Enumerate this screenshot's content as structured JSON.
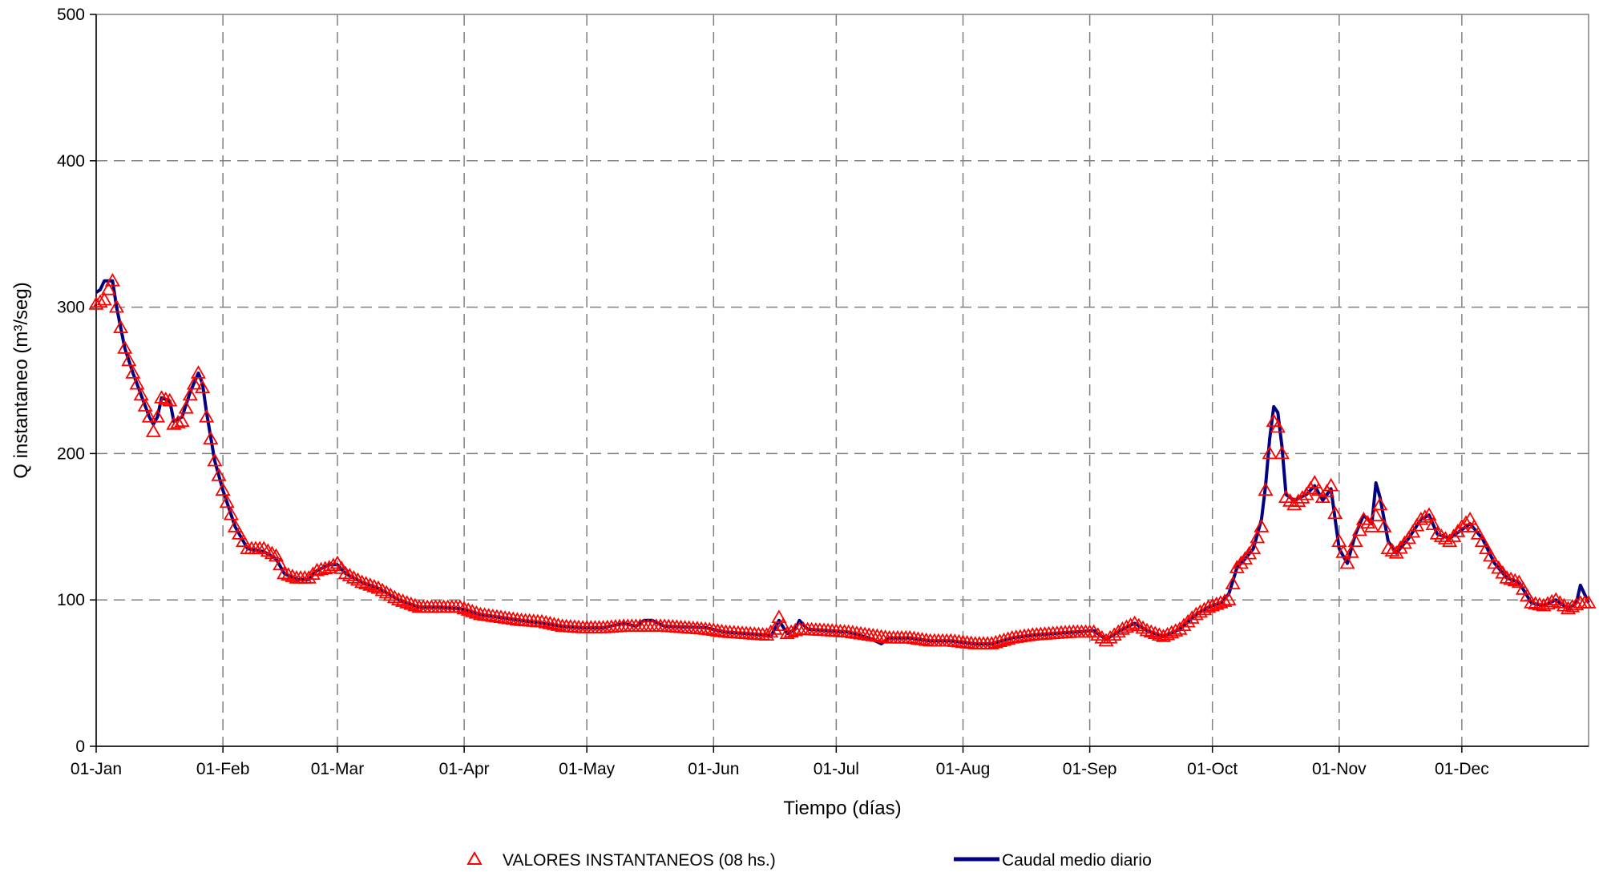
{
  "chart_data": {
    "type": "line",
    "xlabel": "Tiempo (días)",
    "ylabel": "Q instantaneo (m³/seg)",
    "ylim": [
      0,
      500
    ],
    "yticks": [
      0,
      100,
      200,
      300,
      400,
      500
    ],
    "xlim": [
      1,
      366
    ],
    "xticks": [
      {
        "label": "01-Jan",
        "day": 1
      },
      {
        "label": "01-Feb",
        "day": 32
      },
      {
        "label": "01-Mar",
        "day": 60
      },
      {
        "label": "01-Apr",
        "day": 91
      },
      {
        "label": "01-May",
        "day": 121
      },
      {
        "label": "01-Jun",
        "day": 152
      },
      {
        "label": "01-Jul",
        "day": 182
      },
      {
        "label": "01-Aug",
        "day": 213
      },
      {
        "label": "01-Sep",
        "day": 244
      },
      {
        "label": "01-Oct",
        "day": 274
      },
      {
        "label": "01-Nov",
        "day": 305
      },
      {
        "label": "01-Dec",
        "day": 335
      }
    ],
    "grid": true,
    "legend_position": "bottom",
    "colors": {
      "triangles": "#ff0000",
      "line": "#000080",
      "grid": "#808080"
    },
    "series": [
      {
        "name": "VALORES INSTANTANEOS (08 hs.)",
        "marker": "triangle",
        "anchors": [
          [
            1,
            302
          ],
          [
            3,
            305
          ],
          [
            4,
            312
          ],
          [
            5,
            318
          ],
          [
            6,
            300
          ],
          [
            7,
            286
          ],
          [
            8,
            272
          ],
          [
            10,
            255
          ],
          [
            12,
            240
          ],
          [
            14,
            225
          ],
          [
            15,
            215
          ],
          [
            16,
            225
          ],
          [
            17,
            238
          ],
          [
            19,
            236
          ],
          [
            20,
            220
          ],
          [
            22,
            222
          ],
          [
            24,
            240
          ],
          [
            26,
            255
          ],
          [
            27,
            245
          ],
          [
            28,
            225
          ],
          [
            30,
            195
          ],
          [
            32,
            175
          ],
          [
            35,
            150
          ],
          [
            38,
            135
          ],
          [
            42,
            135
          ],
          [
            45,
            130
          ],
          [
            47,
            118
          ],
          [
            50,
            115
          ],
          [
            53,
            115
          ],
          [
            55,
            120
          ],
          [
            58,
            122
          ],
          [
            60,
            125
          ],
          [
            62,
            118
          ],
          [
            66,
            112
          ],
          [
            70,
            108
          ],
          [
            75,
            100
          ],
          [
            80,
            95
          ],
          [
            85,
            95
          ],
          [
            90,
            95
          ],
          [
            95,
            90
          ],
          [
            100,
            88
          ],
          [
            105,
            86
          ],
          [
            110,
            85
          ],
          [
            115,
            82
          ],
          [
            120,
            81
          ],
          [
            125,
            81
          ],
          [
            130,
            82
          ],
          [
            140,
            82
          ],
          [
            150,
            80
          ],
          [
            155,
            78
          ],
          [
            160,
            77
          ],
          [
            165,
            76
          ],
          [
            167,
            80
          ],
          [
            168,
            88
          ],
          [
            170,
            77
          ],
          [
            173,
            80
          ],
          [
            180,
            79
          ],
          [
            185,
            78
          ],
          [
            190,
            76
          ],
          [
            195,
            74
          ],
          [
            200,
            74
          ],
          [
            205,
            72
          ],
          [
            210,
            72
          ],
          [
            213,
            71
          ],
          [
            216,
            70
          ],
          [
            220,
            70
          ],
          [
            225,
            74
          ],
          [
            230,
            76
          ],
          [
            235,
            77
          ],
          [
            240,
            78
          ],
          [
            245,
            78
          ],
          [
            248,
            72
          ],
          [
            252,
            80
          ],
          [
            255,
            84
          ],
          [
            258,
            79
          ],
          [
            262,
            75
          ],
          [
            266,
            80
          ],
          [
            270,
            90
          ],
          [
            273,
            95
          ],
          [
            276,
            98
          ],
          [
            278,
            100
          ],
          [
            280,
            122
          ],
          [
            282,
            128
          ],
          [
            284,
            135
          ],
          [
            286,
            150
          ],
          [
            288,
            200
          ],
          [
            289,
            222
          ],
          [
            290,
            218
          ],
          [
            291,
            200
          ],
          [
            292,
            170
          ],
          [
            294,
            165
          ],
          [
            297,
            172
          ],
          [
            299,
            180
          ],
          [
            301,
            170
          ],
          [
            303,
            178
          ],
          [
            305,
            140
          ],
          [
            307,
            125
          ],
          [
            309,
            140
          ],
          [
            311,
            155
          ],
          [
            313,
            150
          ],
          [
            315,
            165
          ],
          [
            317,
            135
          ],
          [
            319,
            132
          ],
          [
            322,
            142
          ],
          [
            325,
            155
          ],
          [
            327,
            158
          ],
          [
            329,
            145
          ],
          [
            332,
            140
          ],
          [
            335,
            150
          ],
          [
            337,
            155
          ],
          [
            340,
            140
          ],
          [
            343,
            125
          ],
          [
            346,
            115
          ],
          [
            349,
            112
          ],
          [
            352,
            98
          ],
          [
            355,
            96
          ],
          [
            358,
            100
          ],
          [
            361,
            94
          ],
          [
            364,
            98
          ],
          [
            366,
            98
          ]
        ]
      },
      {
        "name": "Caudal medio diario",
        "marker": "line",
        "points": [
          [
            1,
            310
          ],
          [
            2,
            312
          ],
          [
            3,
            318
          ],
          [
            5,
            318
          ],
          [
            6,
            300
          ],
          [
            7,
            286
          ],
          [
            8,
            272
          ],
          [
            10,
            255
          ],
          [
            12,
            240
          ],
          [
            14,
            225
          ],
          [
            15,
            220
          ],
          [
            16,
            225
          ],
          [
            17,
            238
          ],
          [
            19,
            236
          ],
          [
            20,
            222
          ],
          [
            22,
            225
          ],
          [
            24,
            242
          ],
          [
            26,
            255
          ],
          [
            27,
            248
          ],
          [
            28,
            228
          ],
          [
            30,
            195
          ],
          [
            32,
            175
          ],
          [
            35,
            150
          ],
          [
            38,
            135
          ],
          [
            42,
            133
          ],
          [
            45,
            128
          ],
          [
            47,
            118
          ],
          [
            50,
            114
          ],
          [
            53,
            114
          ],
          [
            55,
            120
          ],
          [
            58,
            124
          ],
          [
            60,
            124
          ],
          [
            62,
            118
          ],
          [
            66,
            112
          ],
          [
            70,
            108
          ],
          [
            75,
            100
          ],
          [
            80,
            95
          ],
          [
            85,
            95
          ],
          [
            90,
            94
          ],
          [
            95,
            90
          ],
          [
            100,
            88
          ],
          [
            105,
            86
          ],
          [
            110,
            84
          ],
          [
            115,
            82
          ],
          [
            120,
            81
          ],
          [
            125,
            81
          ],
          [
            130,
            84
          ],
          [
            133,
            82
          ],
          [
            135,
            86
          ],
          [
            137,
            86
          ],
          [
            140,
            82
          ],
          [
            150,
            81
          ],
          [
            155,
            78
          ],
          [
            160,
            77
          ],
          [
            165,
            76
          ],
          [
            166,
            75
          ],
          [
            168,
            86
          ],
          [
            170,
            77
          ],
          [
            172,
            80
          ],
          [
            173,
            86
          ],
          [
            175,
            80
          ],
          [
            180,
            79
          ],
          [
            185,
            78
          ],
          [
            190,
            74
          ],
          [
            193,
            70
          ],
          [
            195,
            74
          ],
          [
            200,
            74
          ],
          [
            205,
            72
          ],
          [
            210,
            72
          ],
          [
            213,
            71
          ],
          [
            216,
            70
          ],
          [
            220,
            70
          ],
          [
            225,
            74
          ],
          [
            230,
            76
          ],
          [
            235,
            77
          ],
          [
            240,
            78
          ],
          [
            245,
            79
          ],
          [
            248,
            73
          ],
          [
            252,
            80
          ],
          [
            255,
            84
          ],
          [
            258,
            79
          ],
          [
            262,
            75
          ],
          [
            266,
            80
          ],
          [
            270,
            90
          ],
          [
            273,
            95
          ],
          [
            276,
            98
          ],
          [
            278,
            104
          ],
          [
            280,
            122
          ],
          [
            282,
            128
          ],
          [
            284,
            135
          ],
          [
            286,
            155
          ],
          [
            287,
            178
          ],
          [
            288,
            210
          ],
          [
            289,
            232
          ],
          [
            290,
            228
          ],
          [
            291,
            205
          ],
          [
            292,
            172
          ],
          [
            294,
            168
          ],
          [
            297,
            172
          ],
          [
            299,
            178
          ],
          [
            301,
            168
          ],
          [
            303,
            176
          ],
          [
            305,
            135
          ],
          [
            307,
            125
          ],
          [
            309,
            145
          ],
          [
            311,
            158
          ],
          [
            313,
            152
          ],
          [
            314,
            180
          ],
          [
            315,
            170
          ],
          [
            317,
            140
          ],
          [
            319,
            132
          ],
          [
            322,
            142
          ],
          [
            325,
            155
          ],
          [
            327,
            158
          ],
          [
            329,
            145
          ],
          [
            332,
            142
          ],
          [
            335,
            148
          ],
          [
            337,
            152
          ],
          [
            340,
            142
          ],
          [
            343,
            125
          ],
          [
            346,
            115
          ],
          [
            349,
            112
          ],
          [
            352,
            98
          ],
          [
            355,
            96
          ],
          [
            358,
            100
          ],
          [
            361,
            94
          ],
          [
            363,
            98
          ],
          [
            364,
            110
          ],
          [
            365,
            104
          ],
          [
            366,
            98
          ]
        ]
      }
    ]
  }
}
